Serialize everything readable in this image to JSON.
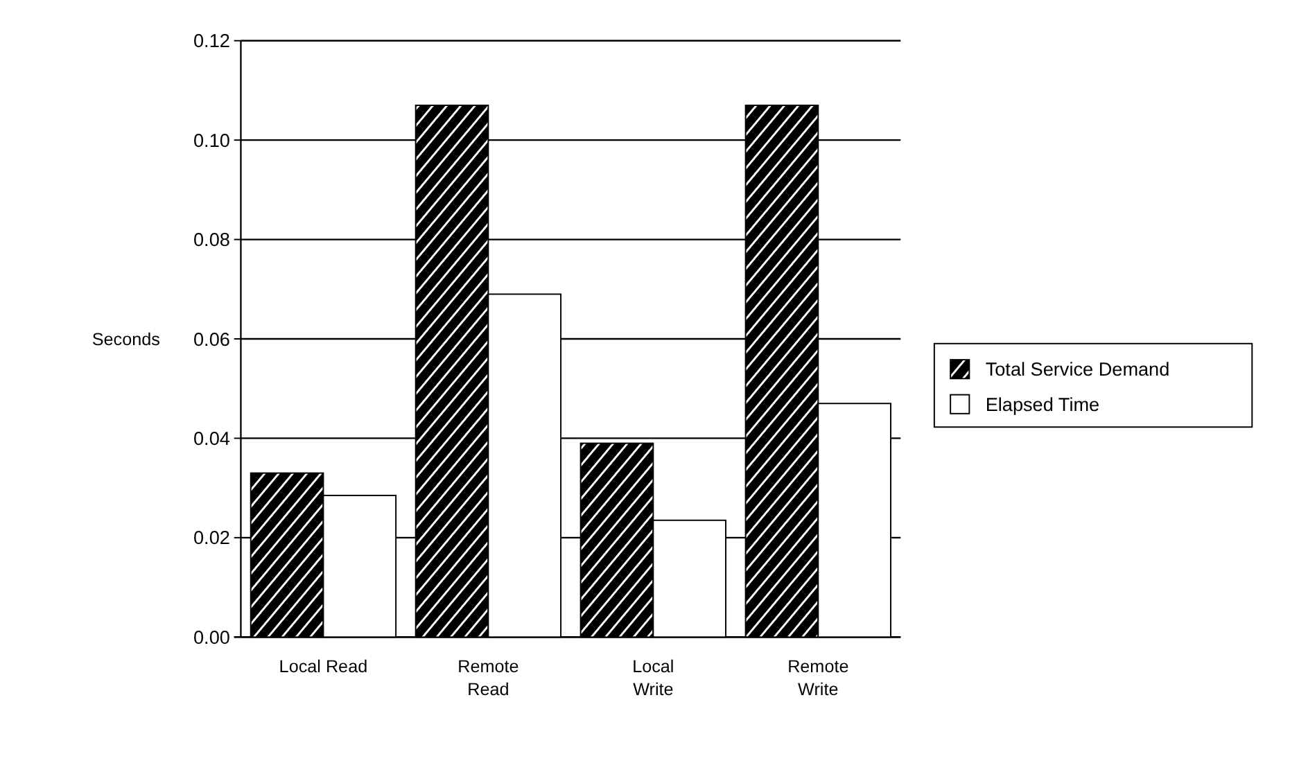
{
  "chart_data": {
    "type": "bar",
    "ylabel": "Seconds",
    "categories": [
      "Local Read",
      "Remote Read",
      "Local Write",
      "Remote Write"
    ],
    "series": [
      {
        "name": "Total Service Demand",
        "color": "#000000",
        "values": [
          0.033,
          0.107,
          0.039,
          0.107
        ]
      },
      {
        "name": "Elapsed Time",
        "color": "#ffffff",
        "values": [
          0.0285,
          0.069,
          0.0235,
          0.047
        ]
      }
    ],
    "ylim": [
      0,
      0.12
    ],
    "yticks": [
      {
        "value": 0,
        "label": "0.00"
      },
      {
        "value": 0.02,
        "label": "0.02"
      },
      {
        "value": 0.04,
        "label": "0.04"
      },
      {
        "value": 0.06,
        "label": "0.06"
      },
      {
        "value": 0.08,
        "label": "0.08"
      },
      {
        "value": 0.1,
        "label": "0.10"
      },
      {
        "value": 0.12,
        "label": "0.12"
      }
    ],
    "grid": "y",
    "legend": "right"
  }
}
